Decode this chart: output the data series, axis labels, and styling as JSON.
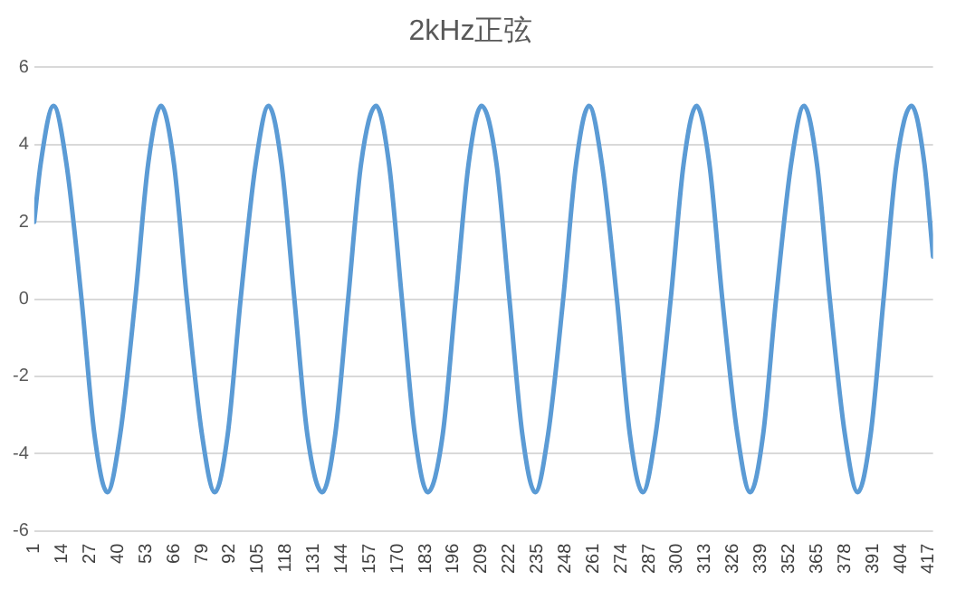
{
  "chart_data": {
    "type": "line",
    "title": "2kHz正弦",
    "x": [
      1,
      4,
      10,
      16,
      23,
      29,
      35,
      41,
      48,
      54,
      60,
      66,
      72,
      79,
      85,
      91,
      97,
      104,
      110,
      116,
      122,
      128,
      135,
      141,
      147,
      153,
      160,
      166,
      172,
      178,
      184,
      191,
      197,
      203,
      209,
      216,
      222,
      228,
      234,
      240,
      247,
      253,
      259,
      265,
      272,
      278,
      284,
      290,
      297,
      303,
      309,
      315,
      321,
      328,
      334,
      340,
      346,
      353,
      359,
      365,
      371,
      378,
      384,
      390,
      396,
      402,
      409,
      415,
      419
    ],
    "series": [
      {
        "color": "#5b9bd5",
        "values": [
          2,
          3.5,
          5,
          3.5,
          0,
          -3.5,
          -5,
          -3.5,
          0,
          3.5,
          5,
          3.5,
          0,
          -3.5,
          -5,
          -3.5,
          0,
          3.5,
          5,
          3.5,
          0,
          -3.5,
          -5,
          -3.5,
          0,
          3.5,
          5,
          3.5,
          0,
          -3.5,
          -5,
          -3.5,
          0,
          3.5,
          5,
          3.5,
          0,
          -3.5,
          -5,
          -3.5,
          0,
          3.5,
          5,
          3.5,
          0,
          -3.5,
          -5,
          -3.5,
          0,
          3.5,
          5,
          3.5,
          0,
          -3.5,
          -5,
          -3.5,
          0,
          3.5,
          5,
          3.5,
          0,
          -3.5,
          -5,
          -3.5,
          0,
          3.5,
          5,
          3.5,
          1.1
        ]
      }
    ],
    "xlim": [
      1,
      419
    ],
    "xticks": [
      1,
      14,
      27,
      40,
      53,
      66,
      79,
      92,
      105,
      118,
      131,
      144,
      157,
      170,
      183,
      196,
      209,
      222,
      235,
      248,
      261,
      274,
      287,
      300,
      313,
      326,
      339,
      352,
      365,
      378,
      391,
      404,
      417
    ],
    "ylim": [
      -6,
      6
    ],
    "yticks": [
      -6,
      -4,
      -2,
      0,
      2,
      4,
      6
    ],
    "grid": "y",
    "legend": false,
    "marker": "none",
    "line_style": "solid"
  }
}
